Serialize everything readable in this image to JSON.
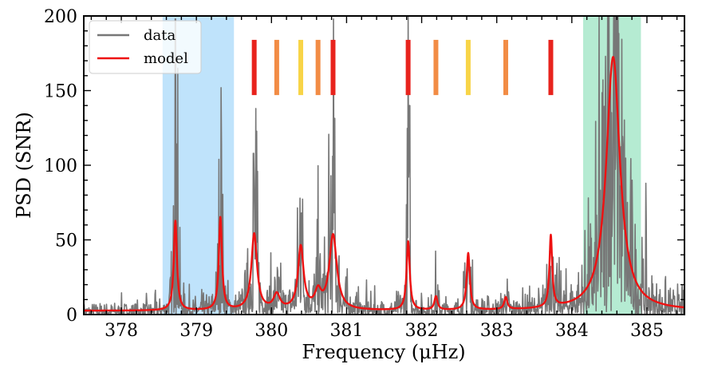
{
  "chart_data": {
    "type": "line",
    "xlabel": "Frequency (μHz)",
    "ylabel": "PSD (SNR)",
    "xlim": [
      377.5,
      385.5
    ],
    "ylim": [
      0,
      200
    ],
    "xticks": [
      378,
      379,
      380,
      381,
      382,
      383,
      384,
      385
    ],
    "xtick_labels": [
      "378",
      "379",
      "380",
      "381",
      "382",
      "383",
      "384",
      "385"
    ],
    "yticks": [
      0,
      50,
      100,
      150,
      200
    ],
    "ytick_labels": [
      "0",
      "50",
      "100",
      "150",
      "200"
    ],
    "legend": {
      "position": "top-left",
      "entries": [
        {
          "label": "data",
          "color": "#777777"
        },
        {
          "label": "model",
          "color": "#ee1111"
        }
      ]
    },
    "shaded_regions": [
      {
        "name": "blue-band",
        "x0": 378.55,
        "x1": 379.5,
        "color": "#bfe3fb"
      },
      {
        "name": "green-band",
        "x0": 384.15,
        "x1": 384.92,
        "color": "#b5ebd2"
      }
    ],
    "marker_bars": [
      {
        "x": 379.77,
        "color": "#e8231d"
      },
      {
        "x": 380.07,
        "color": "#f28c45"
      },
      {
        "x": 380.39,
        "color": "#f8d447"
      },
      {
        "x": 380.62,
        "color": "#f28c45"
      },
      {
        "x": 380.82,
        "color": "#e8231d"
      },
      {
        "x": 381.82,
        "color": "#e8231d"
      },
      {
        "x": 382.19,
        "color": "#f28c45"
      },
      {
        "x": 382.62,
        "color": "#f8d447"
      },
      {
        "x": 383.12,
        "color": "#f28c45"
      },
      {
        "x": 383.72,
        "color": "#e8231d"
      }
    ],
    "marker_y_range": [
      147,
      184
    ],
    "series": [
      {
        "name": "model",
        "color": "#ee1111",
        "baseline": 2.5,
        "peaks": [
          {
            "f": 378.72,
            "h": 60,
            "w": 0.025
          },
          {
            "f": 379.32,
            "h": 62,
            "w": 0.025
          },
          {
            "f": 379.77,
            "h": 51,
            "w": 0.045
          },
          {
            "f": 380.07,
            "h": 10,
            "w": 0.05
          },
          {
            "f": 380.39,
            "h": 42,
            "w": 0.045
          },
          {
            "f": 380.62,
            "h": 11,
            "w": 0.05
          },
          {
            "f": 380.82,
            "h": 50,
            "w": 0.06
          },
          {
            "f": 381.82,
            "h": 46,
            "w": 0.025
          },
          {
            "f": 382.19,
            "h": 9,
            "w": 0.025
          },
          {
            "f": 382.62,
            "h": 38,
            "w": 0.025
          },
          {
            "f": 383.12,
            "h": 8,
            "w": 0.025
          },
          {
            "f": 383.72,
            "h": 48,
            "w": 0.022
          },
          {
            "f": 384.55,
            "h": 170,
            "w": 0.11
          }
        ]
      },
      {
        "name": "data",
        "color": "#777777",
        "noise_seed": 7,
        "spikes": [
          {
            "f": 378.72,
            "h": 198
          },
          {
            "f": 378.75,
            "h": 165
          },
          {
            "f": 379.33,
            "h": 152
          },
          {
            "f": 379.79,
            "h": 138
          },
          {
            "f": 379.76,
            "h": 108
          },
          {
            "f": 380.38,
            "h": 78
          },
          {
            "f": 380.4,
            "h": 68
          },
          {
            "f": 380.79,
            "h": 93
          },
          {
            "f": 380.83,
            "h": 88
          },
          {
            "f": 381.82,
            "h": 200
          },
          {
            "f": 381.84,
            "h": 140
          },
          {
            "f": 384.48,
            "h": 200
          },
          {
            "f": 384.56,
            "h": 200
          },
          {
            "f": 384.62,
            "h": 170
          },
          {
            "f": 384.45,
            "h": 130
          }
        ]
      }
    ]
  }
}
